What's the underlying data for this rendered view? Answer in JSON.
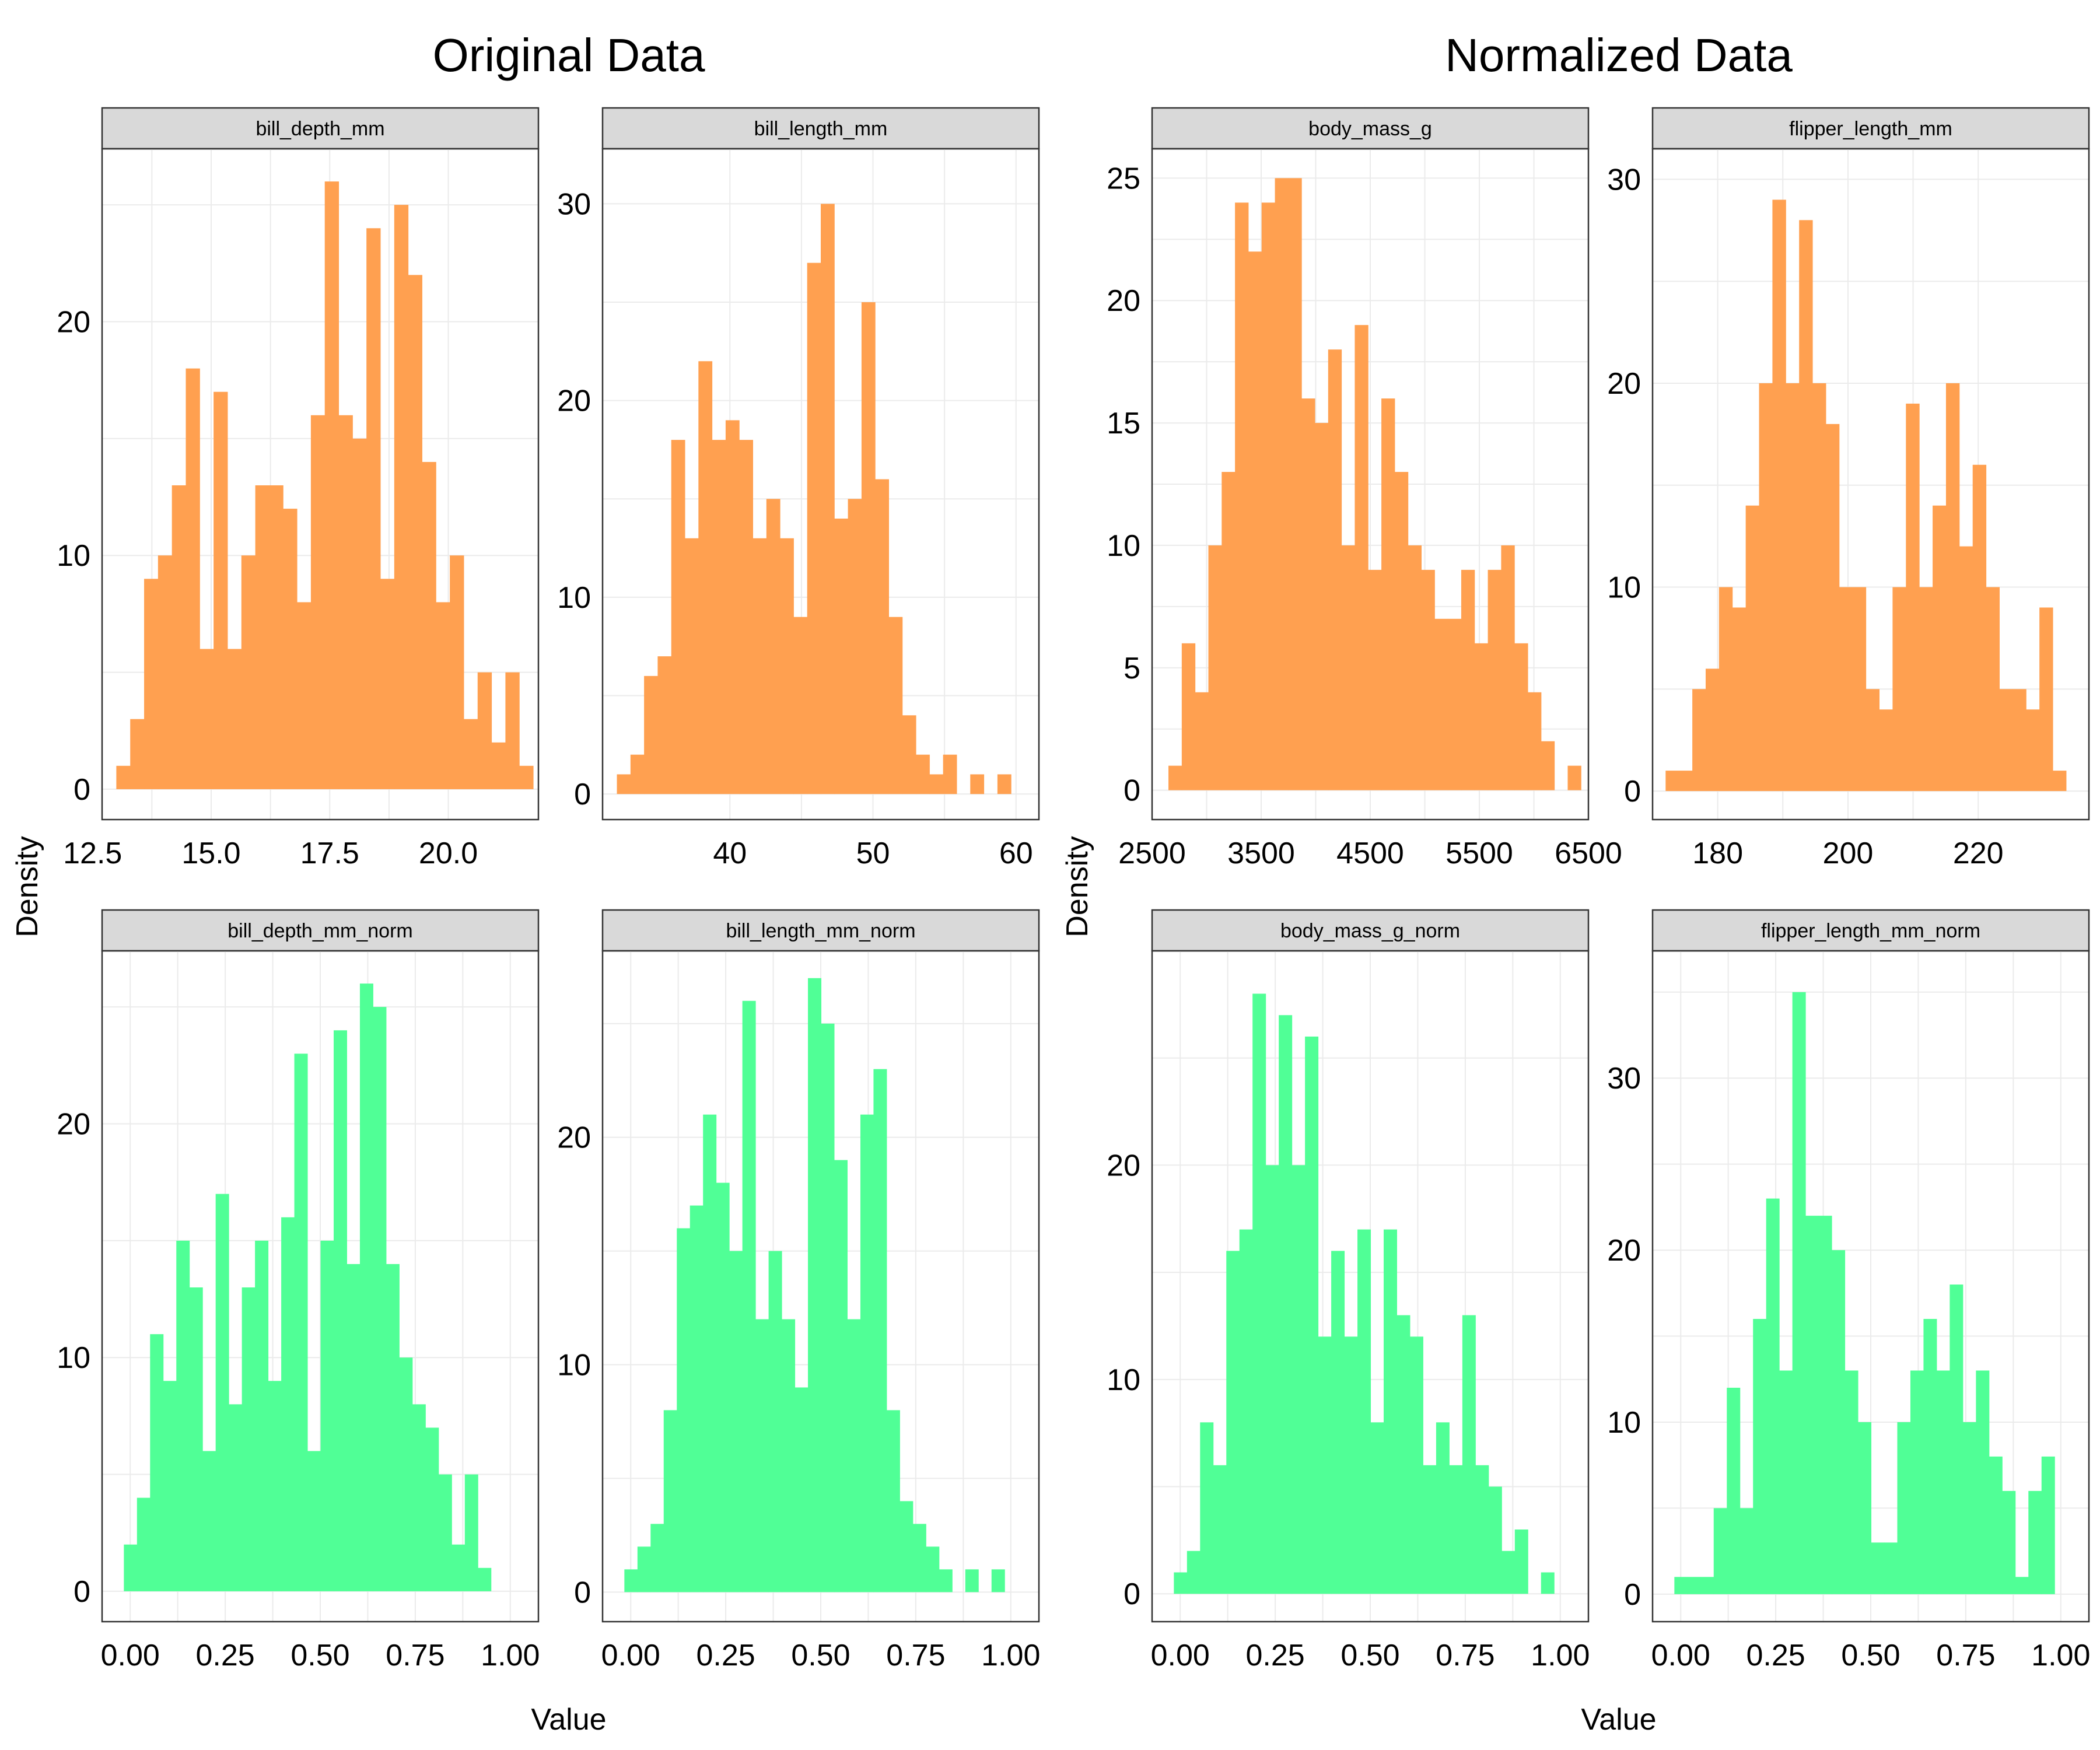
{
  "figure": {
    "x_axis_label": "Value",
    "y_axis_label": "Density",
    "groups": [
      {
        "title": "Original Data",
        "color": "#FFA050"
      },
      {
        "title": "Normalized Data",
        "color": "#50FF96"
      }
    ]
  },
  "chart_data": [
    {
      "type": "bar",
      "group": 0,
      "title": "bill_depth_mm",
      "xlim": [
        12.7,
        21.9
      ],
      "ylim": [
        -1.3,
        27.4
      ],
      "xticks": [
        12.5,
        15.0,
        17.5,
        20.0
      ],
      "xtick_labels": [
        "12.5",
        "15.0",
        "17.5",
        "20.0"
      ],
      "yticks": [
        0,
        10,
        20
      ],
      "ytick_labels": [
        "0",
        "10",
        "20"
      ],
      "bin_start": 13.0,
      "bin_width": 0.293,
      "values": [
        1,
        3,
        9,
        10,
        13,
        18,
        6,
        17,
        6,
        10,
        13,
        13,
        12,
        8,
        16,
        26,
        16,
        15,
        24,
        9,
        25,
        22,
        14,
        8,
        10,
        3,
        5,
        2,
        5,
        1
      ]
    },
    {
      "type": "bar",
      "group": 0,
      "title": "bill_length_mm",
      "xlim": [
        31.1,
        61.6
      ],
      "ylim": [
        -1.3,
        32.8
      ],
      "xticks": [
        40,
        50,
        60
      ],
      "xtick_labels": [
        "40",
        "50",
        "60"
      ],
      "yticks": [
        0,
        10,
        20,
        30
      ],
      "ytick_labels": [
        "0",
        "10",
        "20",
        "30"
      ],
      "bin_start": 32.1,
      "bin_width": 0.95,
      "values": [
        1,
        2,
        6,
        7,
        18,
        13,
        22,
        18,
        19,
        18,
        13,
        15,
        13,
        9,
        27,
        30,
        14,
        15,
        25,
        16,
        9,
        4,
        2,
        1,
        2,
        0,
        1,
        0,
        1
      ]
    },
    {
      "type": "bar",
      "group": 0,
      "title": "body_mass_g",
      "xlim": [
        2500,
        6500
      ],
      "ylim": [
        -1.2,
        26.2
      ],
      "xticks": [
        2500,
        3500,
        4500,
        5500,
        6500
      ],
      "xtick_labels": [
        "2500",
        "3500",
        "4500",
        "5500",
        "6500"
      ],
      "yticks": [
        0,
        5,
        10,
        15,
        20,
        25
      ],
      "ytick_labels": [
        "0",
        "5",
        "10",
        "15",
        "20",
        "25"
      ],
      "bin_start": 2650,
      "bin_width": 122,
      "values": [
        1,
        6,
        4,
        10,
        13,
        24,
        22,
        24,
        25,
        25,
        16,
        15,
        18,
        10,
        19,
        9,
        16,
        13,
        10,
        9,
        7,
        7,
        9,
        6,
        9,
        10,
        6,
        4,
        2,
        0,
        1
      ]
    },
    {
      "type": "bar",
      "group": 0,
      "title": "flipper_length_mm",
      "xlim": [
        170,
        237
      ],
      "ylim": [
        -1.4,
        31.5
      ],
      "xticks": [
        180,
        200,
        220
      ],
      "xtick_labels": [
        "180",
        "200",
        "220"
      ],
      "yticks": [
        0,
        10,
        20,
        30
      ],
      "ytick_labels": [
        "0",
        "10",
        "20",
        "30"
      ],
      "bin_start": 172,
      "bin_width": 2.05,
      "values": [
        1,
        1,
        5,
        6,
        10,
        9,
        14,
        20,
        29,
        20,
        28,
        20,
        18,
        10,
        10,
        5,
        4,
        10,
        19,
        10,
        14,
        20,
        12,
        16,
        10,
        5,
        5,
        4,
        9,
        1
      ]
    },
    {
      "type": "bar",
      "group": 1,
      "title": "bill_depth_mm_norm",
      "xlim": [
        -0.074,
        1.074
      ],
      "ylim": [
        -1.3,
        27.4
      ],
      "xticks": [
        0.0,
        0.25,
        0.5,
        0.75,
        1.0
      ],
      "xtick_labels": [
        "0.00",
        "0.25",
        "0.50",
        "0.75",
        "1.00"
      ],
      "yticks": [
        0,
        10,
        20
      ],
      "ytick_labels": [
        "0",
        "10",
        "20"
      ],
      "bin_start": -0.0167,
      "bin_width": 0.0345,
      "values": [
        2,
        4,
        11,
        9,
        15,
        13,
        6,
        17,
        8,
        13,
        15,
        9,
        16,
        23,
        6,
        15,
        24,
        14,
        26,
        25,
        14,
        10,
        8,
        7,
        5,
        2,
        5,
        1
      ]
    },
    {
      "type": "bar",
      "group": 1,
      "title": "bill_length_mm_norm",
      "xlim": [
        -0.074,
        1.074
      ],
      "ylim": [
        -1.3,
        28.2
      ],
      "xticks": [
        0.0,
        0.25,
        0.5,
        0.75,
        1.0
      ],
      "xtick_labels": [
        "0.00",
        "0.25",
        "0.50",
        "0.75",
        "1.00"
      ],
      "yticks": [
        0,
        10,
        20
      ],
      "ytick_labels": [
        "0",
        "10",
        "20"
      ],
      "bin_start": -0.0167,
      "bin_width": 0.0345,
      "values": [
        1,
        2,
        3,
        8,
        16,
        17,
        21,
        18,
        15,
        26,
        12,
        15,
        12,
        9,
        27,
        25,
        19,
        12,
        21,
        23,
        8,
        4,
        3,
        2,
        1,
        0,
        1,
        0,
        1
      ]
    },
    {
      "type": "bar",
      "group": 1,
      "title": "body_mass_g_norm",
      "xlim": [
        -0.074,
        1.074
      ],
      "ylim": [
        -1.3,
        30.0
      ],
      "xticks": [
        0.0,
        0.25,
        0.5,
        0.75,
        1.0
      ],
      "xtick_labels": [
        "0.00",
        "0.25",
        "0.50",
        "0.75",
        "1.00"
      ],
      "yticks": [
        0,
        10,
        20
      ],
      "ytick_labels": [
        "0",
        "10",
        "20"
      ],
      "bin_start": -0.0167,
      "bin_width": 0.0345,
      "values": [
        1,
        2,
        8,
        6,
        16,
        17,
        28,
        20,
        27,
        20,
        26,
        12,
        16,
        12,
        17,
        8,
        17,
        13,
        12,
        6,
        8,
        6,
        13,
        6,
        5,
        2,
        3,
        0,
        1
      ]
    },
    {
      "type": "bar",
      "group": 1,
      "title": "flipper_length_mm_norm",
      "xlim": [
        -0.074,
        1.074
      ],
      "ylim": [
        -1.6,
        37.4
      ],
      "xticks": [
        0.0,
        0.25,
        0.5,
        0.75,
        1.0
      ],
      "xtick_labels": [
        "0.00",
        "0.25",
        "0.50",
        "0.75",
        "1.00"
      ],
      "yticks": [
        0,
        10,
        20,
        30
      ],
      "ytick_labels": [
        "0",
        "10",
        "20",
        "30"
      ],
      "bin_start": -0.0167,
      "bin_width": 0.0345,
      "values": [
        1,
        1,
        1,
        5,
        12,
        5,
        16,
        23,
        13,
        35,
        22,
        22,
        20,
        13,
        10,
        3,
        3,
        10,
        13,
        16,
        13,
        18,
        10,
        13,
        8,
        6,
        1,
        6,
        8
      ]
    }
  ]
}
